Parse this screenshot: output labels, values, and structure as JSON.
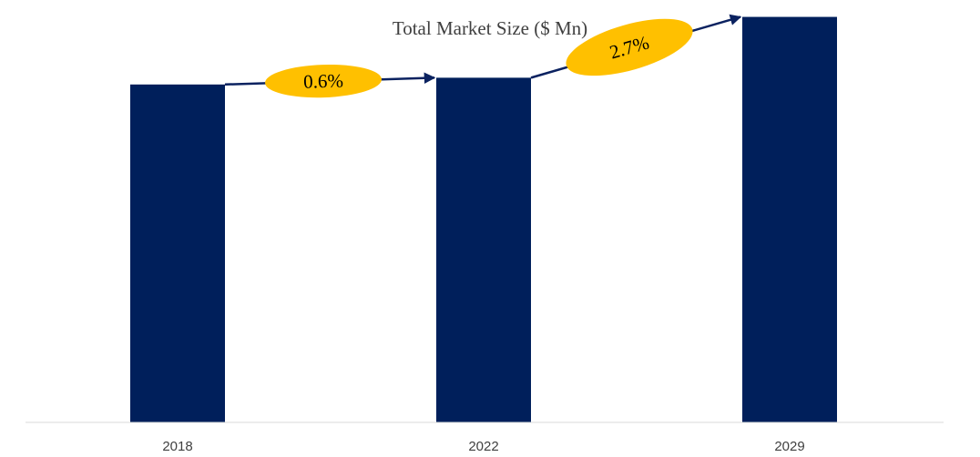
{
  "chart_data": {
    "type": "bar",
    "title": "Total Market Size ($ Mn)",
    "categories": [
      "2018",
      "2022",
      "2029"
    ],
    "values": [
      100,
      102,
      120
    ],
    "xlabel": "",
    "ylabel": "",
    "ylim": [
      0,
      125
    ],
    "grid": false,
    "legend": "none",
    "colors": {
      "bar": "#001F5B",
      "arrow": "#0B2260",
      "growth_bubble": "#FFC000",
      "axis": "#D9D9D9"
    },
    "annotations": [
      {
        "from": "2018",
        "to": "2022",
        "label": "0.6%"
      },
      {
        "from": "2022",
        "to": "2029",
        "label": "2.7%"
      }
    ]
  }
}
